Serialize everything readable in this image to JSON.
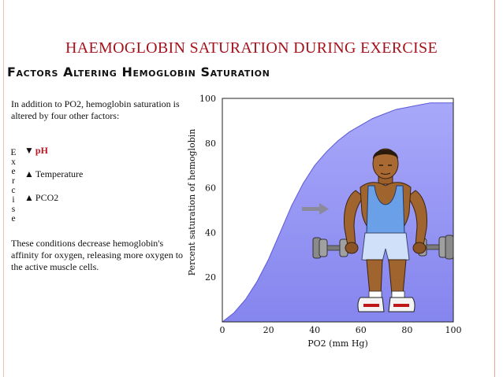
{
  "slide": {
    "title": "HAEMOGLOBIN SATURATION DURING EXERCISE",
    "subtitle": "Factors Altering Hemoglobin Saturation"
  },
  "text": {
    "intro": "In addition to PO2, hemoglobin saturation is altered by four other factors:",
    "vertical_word": "Exercise",
    "factors": [
      {
        "direction": "down",
        "label": "pH"
      },
      {
        "direction": "up",
        "label": "Temperature"
      },
      {
        "direction": "up",
        "label": "PCO2"
      }
    ],
    "outro": "These conditions decrease hemoglobin's affinity for oxygen, releasing more oxygen to the active muscle cells."
  },
  "icons": {
    "down_arrow": "down-arrow-icon",
    "up_arrow": "up-arrow-icon",
    "shift_arrow": "right-shift-arrow-icon",
    "illustration": "exercising-man-with-dumbbells"
  },
  "colors": {
    "title": "#a5121c",
    "ph": "#c0121c",
    "area_fill": "#8f8ff3",
    "area_top": "#ffffff"
  },
  "chart_data": {
    "type": "area",
    "title": "",
    "xlabel": "PO2 (mm Hg)",
    "ylabel": "Percent saturation of hemoglobin",
    "xlim": [
      0,
      100
    ],
    "ylim": [
      0,
      100
    ],
    "xticks": [
      0,
      20,
      40,
      60,
      80,
      100
    ],
    "yticks": [
      20,
      40,
      60,
      80,
      100
    ],
    "grid": false,
    "legend": "none",
    "series": [
      {
        "x": [
          0,
          5,
          10,
          15,
          20,
          25,
          30,
          35,
          40,
          45,
          50,
          55,
          60,
          65,
          70,
          75,
          80,
          85,
          90,
          95,
          100
        ],
        "y": [
          0,
          4,
          10,
          18,
          28,
          40,
          52,
          62,
          70,
          76,
          81,
          85,
          88,
          91,
          93,
          95,
          96,
          97,
          98,
          98,
          98
        ]
      }
    ]
  }
}
